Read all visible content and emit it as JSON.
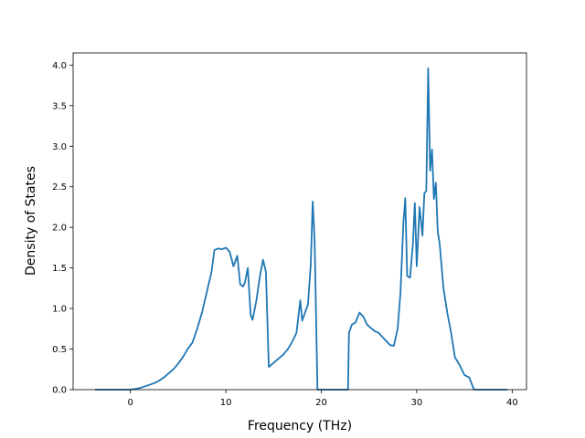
{
  "chart_data": {
    "type": "line",
    "title": "",
    "xlabel": "Frequency (THz)",
    "ylabel": "Density of States",
    "xlim": [
      -6,
      41.5
    ],
    "ylim": [
      0,
      4.15
    ],
    "x_ticks": [
      0,
      10,
      20,
      30,
      40
    ],
    "y_ticks": [
      0.0,
      0.5,
      1.0,
      1.5,
      2.0,
      2.5,
      3.0,
      3.5,
      4.0
    ],
    "x_tick_labels": [
      "0",
      "10",
      "20",
      "30",
      "40"
    ],
    "y_tick_labels": [
      "0.0",
      "0.5",
      "1.0",
      "1.5",
      "2.0",
      "2.5",
      "3.0",
      "3.5",
      "4.0"
    ],
    "grid": false,
    "line_color": "#1f77b4",
    "series": [
      {
        "x": [
          -3.7,
          0.0,
          0.5,
          1.0,
          1.5,
          2.0,
          2.5,
          3.0,
          3.5,
          4.0,
          4.5,
          5.0,
          5.5,
          6.0,
          6.5,
          7.0,
          7.5,
          8.0,
          8.5,
          8.8,
          9.2,
          9.6,
          10.0,
          10.4,
          10.8,
          11.2,
          11.5,
          11.8,
          12.0,
          12.3,
          12.6,
          12.8,
          13.2,
          13.6,
          13.9,
          14.2,
          14.5,
          15.0,
          15.5,
          16.0,
          16.5,
          17.0,
          17.4,
          17.8,
          18.0,
          18.3,
          18.6,
          18.9,
          19.1,
          19.3,
          19.6,
          20.0,
          22.8,
          22.9,
          23.2,
          23.6,
          24.0,
          24.4,
          24.8,
          25.2,
          25.6,
          26.0,
          26.4,
          26.8,
          27.2,
          27.6,
          28.0,
          28.3,
          28.6,
          28.8,
          29.0,
          29.3,
          29.6,
          29.8,
          30.0,
          30.3,
          30.6,
          30.8,
          31.0,
          31.2,
          31.4,
          31.6,
          31.8,
          32.0,
          32.2,
          32.4,
          32.8,
          33.2,
          33.6,
          34.0,
          34.5,
          35.0,
          35.5,
          36.0,
          36.5,
          37.0,
          38.0,
          39.5
        ],
        "y": [
          0.0,
          0.0,
          0.01,
          0.02,
          0.04,
          0.06,
          0.08,
          0.11,
          0.15,
          0.2,
          0.25,
          0.32,
          0.4,
          0.5,
          0.58,
          0.75,
          0.95,
          1.2,
          1.45,
          1.72,
          1.74,
          1.73,
          1.75,
          1.7,
          1.52,
          1.65,
          1.3,
          1.27,
          1.32,
          1.5,
          0.92,
          0.86,
          1.1,
          1.42,
          1.6,
          1.45,
          0.28,
          0.33,
          0.38,
          0.43,
          0.5,
          0.6,
          0.7,
          1.1,
          0.85,
          0.95,
          1.05,
          1.55,
          2.32,
          1.85,
          0.0,
          0.0,
          0.0,
          0.7,
          0.8,
          0.83,
          0.95,
          0.9,
          0.8,
          0.76,
          0.72,
          0.7,
          0.65,
          0.6,
          0.55,
          0.54,
          0.75,
          1.2,
          2.05,
          2.36,
          1.4,
          1.38,
          1.8,
          2.3,
          1.52,
          2.25,
          1.9,
          2.42,
          2.45,
          3.96,
          2.7,
          2.96,
          2.35,
          2.55,
          1.95,
          1.8,
          1.25,
          0.95,
          0.7,
          0.4,
          0.3,
          0.18,
          0.15,
          0.0,
          0.0,
          0.0,
          0.0,
          0.0
        ]
      }
    ]
  }
}
